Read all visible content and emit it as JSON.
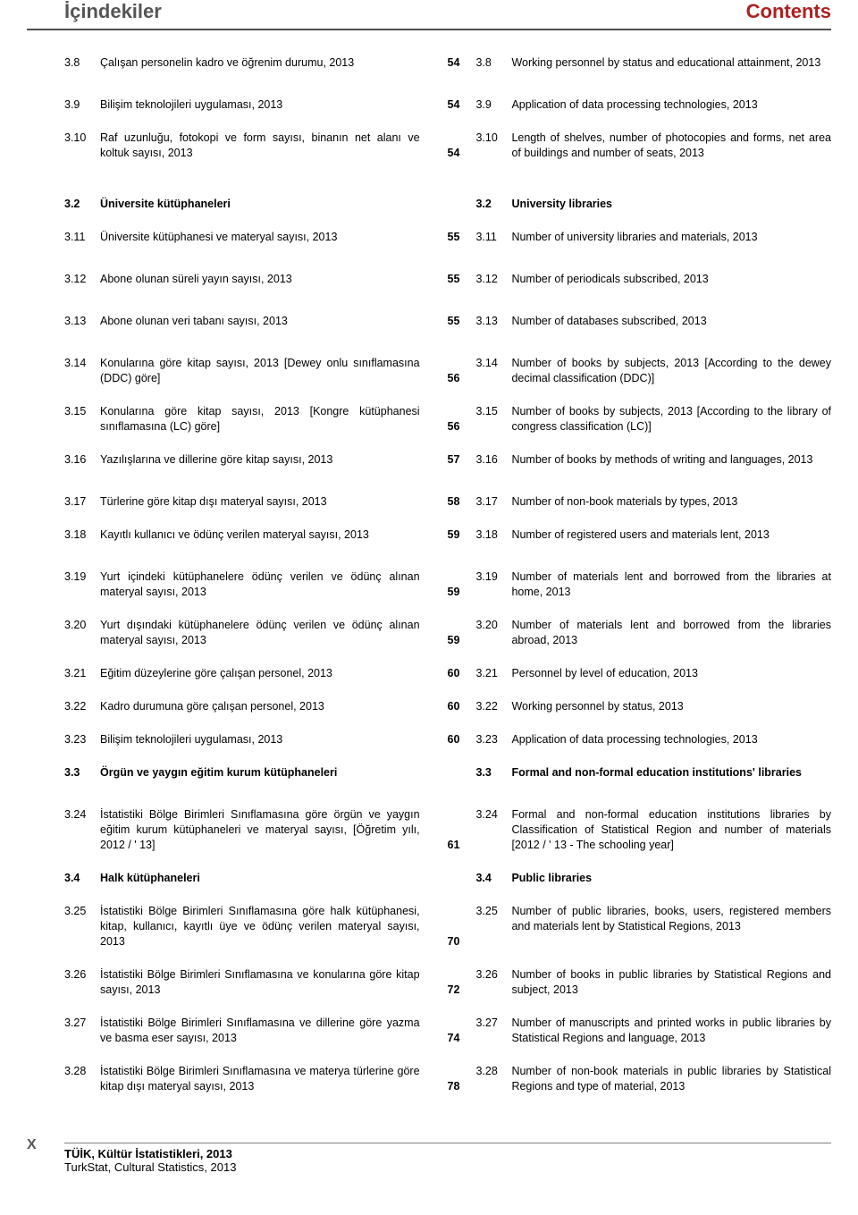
{
  "header": {
    "left": "İçindekiler",
    "right": "Contents"
  },
  "rows": [
    {
      "num_l": "3.8",
      "txt_l": "Çalışan personelin kadro ve öğrenim durumu, 2013",
      "page": "54",
      "num_r": "3.8",
      "txt_r": "Working personnel by status and educational attainment, 2013",
      "gap_after": "md"
    },
    {
      "num_l": "3.9",
      "txt_l": "Bilişim teknolojileri uygulaması, 2013",
      "page": "54",
      "num_r": "3.9",
      "txt_r": "Application of data processing technologies, 2013",
      "gap_after": "sm"
    },
    {
      "num_l": "3.10",
      "txt_l": "Raf uzunluğu, fotokopi ve form sayısı, binanın net alanı ve koltuk sayısı, 2013",
      "page": "54",
      "num_r": "3.10",
      "txt_r": "Length of shelves, number of photocopies and forms, net area of buildings and number of seats, 2013",
      "gap_after": "lg"
    },
    {
      "num_l": "3.2",
      "txt_l": "Üniversite kütüphaneleri",
      "page": "",
      "num_r": "3.2",
      "txt_r": "University libraries",
      "bold": true,
      "gap_after": "sm"
    },
    {
      "num_l": "3.11",
      "txt_l": "Üniversite kütüphanesi ve materyal sayısı, 2013",
      "page": "55",
      "num_r": "3.11",
      "txt_r": "Number of university libraries and materials, 2013",
      "gap_after": "md"
    },
    {
      "num_l": "3.12",
      "txt_l": "Abone olunan süreli yayın sayısı, 2013",
      "page": "55",
      "num_r": "3.12",
      "txt_r": "Number of periodicals subscribed, 2013",
      "gap_after": "md"
    },
    {
      "num_l": "3.13",
      "txt_l": "Abone olunan veri tabanı sayısı, 2013",
      "page": "55",
      "num_r": "3.13",
      "txt_r": "Number of databases subscribed, 2013",
      "gap_after": "md"
    },
    {
      "num_l": "3.14",
      "txt_l": "Konularına göre kitap sayısı, 2013 [Dewey onlu sınıflamasına (DDC) göre]",
      "page": "56",
      "num_r": "3.14",
      "txt_r": "Number of books by subjects, 2013 [According to the dewey decimal classification (DDC)]",
      "gap_after": "sm"
    },
    {
      "num_l": "3.15",
      "txt_l": "Konularına göre kitap sayısı, 2013 [Kongre kütüphanesi sınıflamasına (LC) göre]",
      "page": "56",
      "num_r": "3.15",
      "txt_r": "Number of books by subjects, 2013 [According to the library of congress classification (LC)]",
      "gap_after": "sm"
    },
    {
      "num_l": "3.16",
      "txt_l": "Yazılışlarına ve dillerine göre kitap sayısı, 2013",
      "page": "57",
      "num_r": "3.16",
      "txt_r": "Number of books by methods of writing and languages, 2013",
      "gap_after": "md"
    },
    {
      "num_l": "3.17",
      "txt_l": "Türlerine göre kitap dışı materyal sayısı, 2013",
      "page": "58",
      "num_r": "3.17",
      "txt_r": "Number of non-book materials by types, 2013",
      "gap_after": "sm"
    },
    {
      "num_l": "3.18",
      "txt_l": "Kayıtlı kullanıcı ve ödünç verilen materyal sayısı, 2013",
      "page": "59",
      "num_r": "3.18",
      "txt_r": "Number of registered users and materials lent, 2013",
      "gap_after": "md"
    },
    {
      "num_l": "3.19",
      "txt_l": "Yurt içindeki kütüphanelere ödünç verilen ve ödünç alınan materyal sayısı, 2013",
      "page": "59",
      "num_r": "3.19",
      "txt_r": "Number of materials lent and borrowed from the libraries at home, 2013",
      "gap_after": "sm"
    },
    {
      "num_l": "3.20",
      "txt_l": "Yurt dışındaki kütüphanelere ödünç verilen ve ödünç alınan materyal sayısı, 2013",
      "page": "59",
      "num_r": "3.20",
      "txt_r": "Number of materials lent and borrowed from the libraries abroad, 2013",
      "gap_after": "sm"
    },
    {
      "num_l": "3.21",
      "txt_l": "Eğitim düzeylerine göre çalışan personel, 2013",
      "page": "60",
      "num_r": "3.21",
      "txt_r": "Personnel by level of education, 2013",
      "gap_after": "sm"
    },
    {
      "num_l": "3.22",
      "txt_l": "Kadro durumuna göre çalışan personel, 2013",
      "page": "60",
      "num_r": "3.22",
      "txt_r": "Working personnel by status, 2013",
      "gap_after": "sm"
    },
    {
      "num_l": "3.23",
      "txt_l": "Bilişim teknolojileri uygulaması, 2013",
      "page": "60",
      "num_r": "3.23",
      "txt_r": "Application of data processing technologies, 2013",
      "gap_after": "sm"
    },
    {
      "num_l": "3.3",
      "txt_l": "Örgün ve yaygın eğitim kurum kütüphaneleri",
      "page": "",
      "num_r": "3.3",
      "txt_r": "Formal and non-formal education institutions' libraries",
      "bold": true,
      "gap_after": "md"
    },
    {
      "num_l": "3.24",
      "txt_l": "İstatistiki Bölge Birimleri Sınıflamasına göre örgün ve yaygın eğitim kurum kütüphaneleri ve materyal sayısı, [Öğretim yılı, 2012 / ' 13]",
      "page": "61",
      "num_r": "3.24",
      "txt_r": "Formal and non-formal education institutions libraries by Classification of Statistical Region and number of materials [2012 / ' 13 - The schooling year]",
      "gap_after": "sm"
    },
    {
      "num_l": "3.4",
      "txt_l": "Halk kütüphaneleri",
      "page": "",
      "num_r": "3.4",
      "txt_r": "Public libraries",
      "bold": true,
      "gap_after": "sm"
    },
    {
      "num_l": "3.25",
      "txt_l": "İstatistiki Bölge Birimleri Sınıflamasına göre halk kütüphanesi, kitap, kullanıcı, kayıtlı üye ve ödünç verilen materyal sayısı, 2013",
      "page": "70",
      "num_r": "3.25",
      "txt_r": "Number of public libraries, books, users, registered members and materials lent by Statistical Regions, 2013",
      "gap_after": "sm"
    },
    {
      "num_l": "3.26",
      "txt_l": "İstatistiki Bölge Birimleri Sınıflamasına ve konularına göre kitap sayısı, 2013",
      "page": "72",
      "num_r": "3.26",
      "txt_r": "Number of books in public libraries by Statistical Regions and subject, 2013",
      "gap_after": "sm"
    },
    {
      "num_l": "3.27",
      "txt_l": "İstatistiki Bölge Birimleri Sınıflamasına ve dillerine göre yazma ve basma eser sayısı, 2013",
      "page": "74",
      "num_r": "3.27",
      "txt_r": "Number of manuscripts and printed works in public libraries by Statistical Regions and language, 2013",
      "gap_after": "sm"
    },
    {
      "num_l": "3.28",
      "txt_l": "İstatistiki Bölge Birimleri Sınıflamasına ve materya türlerine göre kitap dışı materyal sayısı, 2013",
      "page": "78",
      "num_r": "3.28",
      "txt_r": "Number of non-book materials in public libraries by Statistical Regions and type of material, 2013",
      "gap_after": ""
    }
  ],
  "footer": {
    "page_letter": "X",
    "line1": "TÜİK, Kültür İstatistikleri, 2013",
    "line2": "TurkStat, Cultural Statistics, 2013"
  }
}
